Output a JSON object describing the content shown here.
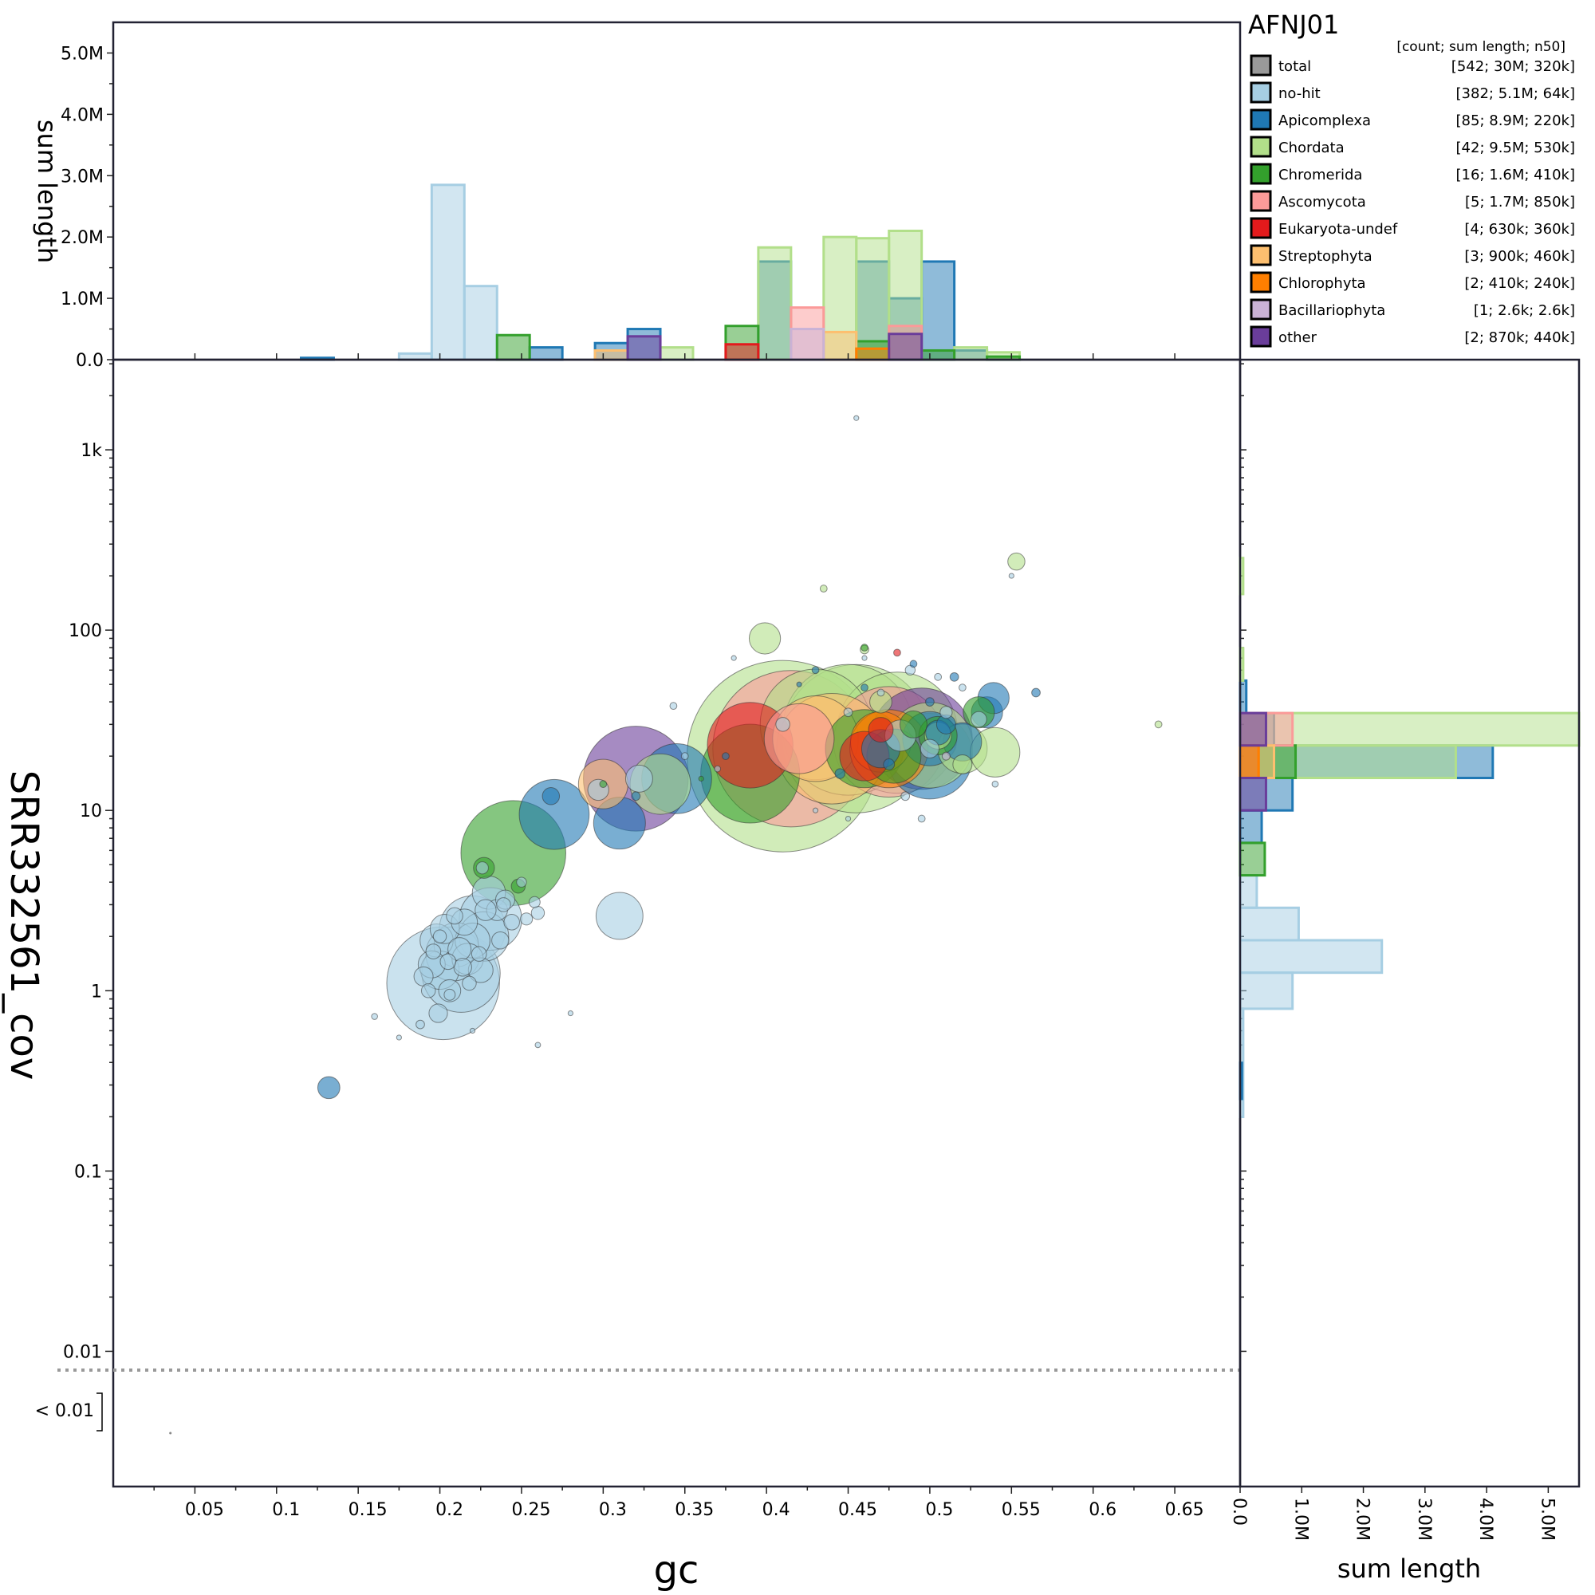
{
  "chart_data": {
    "type": "scatter",
    "title": "AFNJ01",
    "xlabel": "gc",
    "ylabel": "SRR332561_cov",
    "xlim": [
      0,
      0.69
    ],
    "ylim_log10": [
      -2.75,
      3.5
    ],
    "x_ticks": [
      "0.05",
      "0.1",
      "0.15",
      "0.2",
      "0.25",
      "0.3",
      "0.35",
      "0.4",
      "0.45",
      "0.5",
      "0.55",
      "0.6",
      "0.65"
    ],
    "y_ticks": [
      "1k",
      "100",
      "10",
      "1",
      "0.1",
      "0.01"
    ],
    "below_threshold_label": "< 0.01",
    "hist_label": "sum length",
    "hist_ticks": [
      "0.0",
      "1.0M",
      "2.0M",
      "3.0M",
      "4.0M",
      "5.0M"
    ],
    "hist_max": 5.5,
    "legend_header": "[count; sum length; n50]",
    "legend": [
      {
        "key": "total",
        "name": "total",
        "stats": "[542; 30M; 320k]",
        "color": "#999999"
      },
      {
        "key": "nohit",
        "name": "no-hit",
        "stats": "[382; 5.1M; 64k]",
        "color": "#a6cee3"
      },
      {
        "key": "apic",
        "name": "Apicomplexa",
        "stats": "[85; 8.9M; 220k]",
        "color": "#1f78b4"
      },
      {
        "key": "chord",
        "name": "Chordata",
        "stats": "[42; 9.5M; 530k]",
        "color": "#b2df8a"
      },
      {
        "key": "chrom",
        "name": "Chromerida",
        "stats": "[16; 1.6M; 410k]",
        "color": "#33a02c"
      },
      {
        "key": "asco",
        "name": "Ascomycota",
        "stats": "[5; 1.7M; 850k]",
        "color": "#fb9a99"
      },
      {
        "key": "euk",
        "name": "Eukaryota-undef",
        "stats": "[4; 630k; 360k]",
        "color": "#e31a1c"
      },
      {
        "key": "strep",
        "name": "Streptophyta",
        "stats": "[3; 900k; 460k]",
        "color": "#fdbf6f"
      },
      {
        "key": "chloro",
        "name": "Chlorophyta",
        "stats": "[2; 410k; 240k]",
        "color": "#ff7f00"
      },
      {
        "key": "bacil",
        "name": "Bacillariophyta",
        "stats": "[1; 2.6k; 2.6k]",
        "color": "#cab2d6"
      },
      {
        "key": "other",
        "name": "other",
        "stats": "[2; 870k; 440k]",
        "color": "#6a3d9a"
      }
    ],
    "top_histogram_bins_gc": [
      {
        "series": "nohit",
        "bins": [
          [
            0.175,
            0.195,
            0.1
          ],
          [
            0.195,
            0.215,
            2.85
          ],
          [
            0.215,
            0.235,
            1.2
          ]
        ]
      },
      {
        "series": "apic",
        "bins": [
          [
            0.115,
            0.135,
            0.03
          ],
          [
            0.255,
            0.275,
            0.2
          ],
          [
            0.295,
            0.315,
            0.27
          ],
          [
            0.315,
            0.335,
            0.5
          ],
          [
            0.395,
            0.415,
            1.6
          ],
          [
            0.455,
            0.475,
            1.6
          ],
          [
            0.475,
            0.495,
            1.0
          ],
          [
            0.495,
            0.515,
            1.6
          ],
          [
            0.515,
            0.535,
            0.15
          ]
        ]
      },
      {
        "series": "chord",
        "bins": [
          [
            0.335,
            0.355,
            0.2
          ],
          [
            0.395,
            0.415,
            1.83
          ],
          [
            0.435,
            0.455,
            2.0
          ],
          [
            0.455,
            0.475,
            1.98
          ],
          [
            0.475,
            0.495,
            2.1
          ],
          [
            0.515,
            0.535,
            0.2
          ],
          [
            0.535,
            0.555,
            0.12
          ]
        ]
      },
      {
        "series": "chrom",
        "bins": [
          [
            0.235,
            0.255,
            0.4
          ],
          [
            0.375,
            0.395,
            0.55
          ],
          [
            0.455,
            0.475,
            0.3
          ],
          [
            0.495,
            0.515,
            0.15
          ],
          [
            0.535,
            0.555,
            0.05
          ]
        ]
      },
      {
        "series": "asco",
        "bins": [
          [
            0.415,
            0.435,
            0.85
          ],
          [
            0.475,
            0.495,
            0.55
          ]
        ]
      },
      {
        "series": "euk",
        "bins": [
          [
            0.375,
            0.395,
            0.25
          ]
        ]
      },
      {
        "series": "strep",
        "bins": [
          [
            0.295,
            0.315,
            0.15
          ],
          [
            0.435,
            0.455,
            0.45
          ]
        ]
      },
      {
        "series": "chloro",
        "bins": [
          [
            0.455,
            0.475,
            0.18
          ]
        ]
      },
      {
        "series": "bacil",
        "bins": [
          [
            0.415,
            0.435,
            0.5
          ]
        ]
      },
      {
        "series": "other",
        "bins": [
          [
            0.315,
            0.335,
            0.38
          ],
          [
            0.475,
            0.495,
            0.42
          ]
        ]
      }
    ],
    "side_histogram_bins_log10cov": [
      {
        "series": "nohit",
        "bins": [
          [
            -0.7,
            -0.1,
            0.05
          ],
          [
            -0.1,
            0.1,
            0.85
          ],
          [
            0.1,
            0.28,
            2.3
          ],
          [
            0.28,
            0.46,
            0.95
          ],
          [
            0.46,
            0.64,
            0.27
          ]
        ]
      },
      {
        "series": "apic",
        "bins": [
          [
            -0.6,
            -0.4,
            0.03
          ],
          [
            0.82,
            1.0,
            0.35
          ],
          [
            1.0,
            1.18,
            0.85
          ],
          [
            1.18,
            1.36,
            4.1
          ],
          [
            1.36,
            1.54,
            0.55
          ],
          [
            1.54,
            1.72,
            0.1
          ]
        ]
      },
      {
        "series": "chord",
        "bins": [
          [
            1.36,
            1.54,
            5.5
          ],
          [
            1.18,
            1.36,
            3.5
          ],
          [
            1.72,
            1.9,
            0.05
          ],
          [
            2.2,
            2.4,
            0.05
          ]
        ]
      },
      {
        "series": "chrom",
        "bins": [
          [
            0.64,
            0.82,
            0.4
          ],
          [
            1.18,
            1.36,
            0.9
          ]
        ]
      },
      {
        "series": "asco",
        "bins": [
          [
            1.36,
            1.54,
            0.85
          ]
        ]
      },
      {
        "series": "euk",
        "bins": [
          [
            1.18,
            1.36,
            0.3
          ]
        ]
      },
      {
        "series": "strep",
        "bins": [
          [
            1.18,
            1.36,
            0.55
          ]
        ]
      },
      {
        "series": "chloro",
        "bins": [
          [
            1.18,
            1.36,
            0.3
          ]
        ]
      },
      {
        "series": "other",
        "bins": [
          [
            1.0,
            1.18,
            0.42
          ],
          [
            1.36,
            1.54,
            0.42
          ]
        ]
      }
    ],
    "points_gc_cov_lengthkb": [
      [
        "nohit",
        0.202,
        1.1,
        520
      ],
      [
        "nohit",
        0.213,
        1.25,
        250
      ],
      [
        "nohit",
        0.22,
        2.2,
        180
      ],
      [
        "nohit",
        0.208,
        1.6,
        120
      ],
      [
        "nohit",
        0.231,
        2.5,
        160
      ],
      [
        "nohit",
        0.227,
        2.0,
        100
      ],
      [
        "nohit",
        0.2,
        1.3,
        60
      ],
      [
        "nohit",
        0.21,
        1.8,
        80
      ],
      [
        "nohit",
        0.198,
        1.9,
        45
      ],
      [
        "nohit",
        0.195,
        1.4,
        30
      ],
      [
        "nohit",
        0.203,
        2.2,
        35
      ],
      [
        "nohit",
        0.217,
        1.5,
        40
      ],
      [
        "nohit",
        0.22,
        1.9,
        50
      ],
      [
        "nohit",
        0.225,
        1.3,
        25
      ],
      [
        "nohit",
        0.19,
        1.2,
        15
      ],
      [
        "nohit",
        0.206,
        1.0,
        20
      ],
      [
        "nohit",
        0.212,
        1.7,
        22
      ],
      [
        "nohit",
        0.215,
        2.4,
        28
      ],
      [
        "nohit",
        0.23,
        3.5,
        45
      ],
      [
        "nohit",
        0.235,
        2.8,
        18
      ],
      [
        "nohit",
        0.24,
        3.2,
        15
      ],
      [
        "nohit",
        0.244,
        2.4,
        10
      ],
      [
        "nohit",
        0.237,
        1.9,
        12
      ],
      [
        "nohit",
        0.228,
        2.8,
        18
      ],
      [
        "nohit",
        0.193,
        1.0,
        8
      ],
      [
        "nohit",
        0.199,
        0.75,
        14
      ],
      [
        "nohit",
        0.196,
        1.65,
        9
      ],
      [
        "nohit",
        0.205,
        1.45,
        10
      ],
      [
        "nohit",
        0.218,
        1.1,
        8
      ],
      [
        "nohit",
        0.224,
        1.6,
        9
      ],
      [
        "nohit",
        0.209,
        2.6,
        11
      ],
      [
        "nohit",
        0.214,
        1.35,
        13
      ],
      [
        "nohit",
        0.239,
        3.0,
        8
      ],
      [
        "nohit",
        0.226,
        4.8,
        6
      ],
      [
        "nohit",
        0.25,
        4.0,
        4
      ],
      [
        "nohit",
        0.253,
        2.5,
        6
      ],
      [
        "nohit",
        0.26,
        2.7,
        7
      ],
      [
        "nohit",
        0.258,
        3.1,
        5
      ],
      [
        "nohit",
        0.2,
        2.0,
        7
      ],
      [
        "nohit",
        0.206,
        0.95,
        5
      ],
      [
        "nohit",
        0.188,
        0.65,
        3
      ],
      [
        "nohit",
        0.16,
        0.72,
        1.5
      ],
      [
        "nohit",
        0.31,
        2.6,
        90
      ],
      [
        "nohit",
        0.297,
        13,
        18
      ],
      [
        "nohit",
        0.322,
        15,
        30
      ],
      [
        "nohit",
        0.26,
        0.5,
        1.2
      ],
      [
        "nohit",
        0.28,
        0.75,
        1
      ],
      [
        "nohit",
        0.455,
        1500,
        1
      ],
      [
        "nohit",
        0.343,
        38,
        2
      ],
      [
        "nohit",
        0.35,
        20,
        2
      ],
      [
        "nohit",
        0.37,
        17,
        1.5
      ],
      [
        "nohit",
        0.482,
        26,
        40
      ],
      [
        "nohit",
        0.51,
        35,
        6
      ],
      [
        "nohit",
        0.53,
        32,
        10
      ],
      [
        "nohit",
        0.488,
        60,
        4
      ],
      [
        "nohit",
        0.45,
        35,
        3
      ],
      [
        "nohit",
        0.41,
        30,
        8
      ],
      [
        "nohit",
        0.47,
        45,
        2
      ],
      [
        "nohit",
        0.5,
        22,
        14
      ],
      [
        "nohit",
        0.52,
        48,
        2
      ],
      [
        "nohit",
        0.505,
        55,
        2
      ],
      [
        "nohit",
        0.46,
        70,
        1
      ],
      [
        "nohit",
        0.485,
        12,
        3
      ],
      [
        "nohit",
        0.495,
        9,
        2
      ],
      [
        "nohit",
        0.54,
        14,
        1.5
      ],
      [
        "nohit",
        0.55,
        200,
        1
      ],
      [
        "nohit",
        0.45,
        9,
        1
      ],
      [
        "nohit",
        0.43,
        10,
        1
      ],
      [
        "nohit",
        0.38,
        70,
        1
      ],
      [
        "nohit",
        0.22,
        0.6,
        1
      ],
      [
        "nohit",
        0.175,
        0.55,
        1
      ],
      [
        "apic",
        0.132,
        0.29,
        20
      ],
      [
        "apic",
        0.27,
        9.5,
        200
      ],
      [
        "apic",
        0.268,
        12,
        12
      ],
      [
        "apic",
        0.31,
        8.5,
        110
      ],
      [
        "apic",
        0.345,
        15,
        200
      ],
      [
        "apic",
        0.5,
        20,
        300
      ],
      [
        "apic",
        0.52,
        24,
        60
      ],
      [
        "apic",
        0.5,
        25,
        120
      ],
      [
        "apic",
        0.535,
        35,
        40
      ],
      [
        "apic",
        0.539,
        42,
        40
      ],
      [
        "apic",
        0.505,
        27,
        25
      ],
      [
        "apic",
        0.51,
        30,
        15
      ],
      [
        "apic",
        0.47,
        22,
        60
      ],
      [
        "apic",
        0.515,
        55,
        3
      ],
      [
        "apic",
        0.565,
        45,
        3
      ],
      [
        "apic",
        0.43,
        60,
        2
      ],
      [
        "apic",
        0.49,
        65,
        2
      ],
      [
        "apic",
        0.42,
        50,
        1
      ],
      [
        "apic",
        0.46,
        48,
        2
      ],
      [
        "apic",
        0.5,
        40,
        3
      ],
      [
        "apic",
        0.475,
        18,
        5
      ],
      [
        "apic",
        0.445,
        16,
        4
      ],
      [
        "apic",
        0.375,
        20,
        2
      ],
      [
        "apic",
        0.32,
        12,
        3
      ],
      [
        "chord",
        0.41,
        20,
        1500
      ],
      [
        "chord",
        0.455,
        25,
        900
      ],
      [
        "chord",
        0.45,
        28,
        700
      ],
      [
        "chord",
        0.48,
        27,
        600
      ],
      [
        "chord",
        0.43,
        30,
        500
      ],
      [
        "chord",
        0.5,
        23,
        300
      ],
      [
        "chord",
        0.52,
        22,
        100
      ],
      [
        "chord",
        0.54,
        21,
        100
      ],
      [
        "chord",
        0.335,
        14,
        150
      ],
      [
        "chord",
        0.399,
        90,
        40
      ],
      [
        "chord",
        0.553,
        240,
        12
      ],
      [
        "chord",
        0.46,
        78,
        3
      ],
      [
        "chord",
        0.64,
        30,
        2
      ],
      [
        "chord",
        0.435,
        170,
        2
      ],
      [
        "chord",
        0.47,
        40,
        20
      ],
      [
        "chord",
        0.52,
        18,
        15
      ],
      [
        "chord",
        0.505,
        26,
        30
      ],
      [
        "chrom",
        0.245,
        5.8,
        450
      ],
      [
        "chrom",
        0.39,
        16,
        400
      ],
      [
        "chrom",
        0.46,
        22,
        250
      ],
      [
        "chrom",
        0.505,
        26,
        60
      ],
      [
        "chrom",
        0.53,
        35,
        40
      ],
      [
        "chrom",
        0.478,
        20,
        120
      ],
      [
        "chrom",
        0.227,
        4.8,
        18
      ],
      [
        "chrom",
        0.248,
        3.8,
        8
      ],
      [
        "chrom",
        0.46,
        80,
        2
      ],
      [
        "chrom",
        0.49,
        30,
        30
      ],
      [
        "chrom",
        0.36,
        15,
        1
      ],
      [
        "chrom",
        0.3,
        14,
        2
      ],
      [
        "asco",
        0.415,
        22,
        1000
      ],
      [
        "asco",
        0.475,
        24,
        500
      ],
      [
        "asco",
        0.42,
        25,
        200
      ],
      [
        "euk",
        0.39,
        23,
        300
      ],
      [
        "euk",
        0.48,
        75,
        2
      ],
      [
        "euk",
        0.47,
        28,
        25
      ],
      [
        "euk",
        0.46,
        20,
        100
      ],
      [
        "strep",
        0.44,
        22,
        500
      ],
      [
        "strep",
        0.43,
        25,
        300
      ],
      [
        "strep",
        0.3,
        14,
        100
      ],
      [
        "chloro",
        0.47,
        24,
        150
      ],
      [
        "chloro",
        0.475,
        22,
        250
      ],
      [
        "bacil",
        0.51,
        20,
        2.6
      ],
      [
        "other",
        0.32,
        15,
        450
      ],
      [
        "other",
        0.495,
        25,
        420
      ]
    ]
  }
}
